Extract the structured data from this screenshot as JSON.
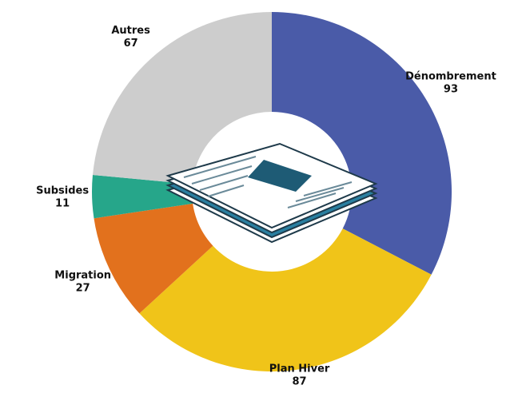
{
  "chart_data": {
    "type": "pie",
    "categories": [
      "Dénombrement",
      "Plan Hiver",
      "Migration",
      "Subsides",
      "Autres"
    ],
    "values": [
      93,
      87,
      27,
      11,
      67
    ],
    "colors": [
      "#4a5ba8",
      "#f0c419",
      "#e2711d",
      "#26a68a",
      "#cdcdcd"
    ]
  }
}
